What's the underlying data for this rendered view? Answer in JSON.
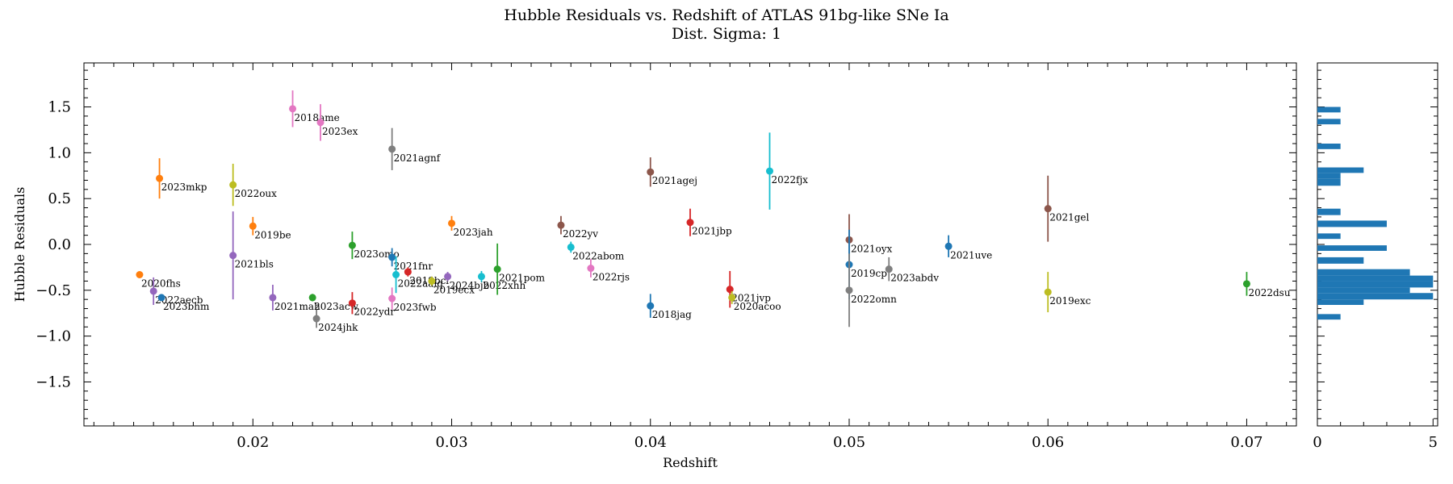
{
  "chart_data": [
    {
      "type": "scatter",
      "title": "Hubble Residuals vs. Redshift of ATLAS 91bg-like SNe Ia",
      "subtitle": "Dist. Sigma: 1",
      "xlabel": "Redshift",
      "ylabel": "Hubble Residuals",
      "xlim": [
        0.0115,
        0.0725
      ],
      "ylim": [
        -1.98,
        1.98
      ],
      "xticks": [
        0.02,
        0.03,
        0.04,
        0.05,
        0.06,
        0.07
      ],
      "xtick_labels": [
        "0.02",
        "0.03",
        "0.04",
        "0.05",
        "0.06",
        "0.07"
      ],
      "yticks": [
        -1.5,
        -1.0,
        -0.5,
        0.0,
        0.5,
        1.0,
        1.5
      ],
      "ytick_labels": [
        "−1.5",
        "−1.0",
        "−0.5",
        "0.0",
        "0.5",
        "1.0",
        "1.5"
      ],
      "grid": false,
      "points": [
        {
          "name": "2018ame",
          "x": 0.022,
          "y": 1.48,
          "err": 0.2,
          "color": "#e377c2"
        },
        {
          "name": "2023ex",
          "x": 0.0234,
          "y": 1.33,
          "err": 0.2,
          "color": "#e377c2"
        },
        {
          "name": "2021agnf",
          "x": 0.027,
          "y": 1.04,
          "err": 0.23,
          "color": "#7f7f7f"
        },
        {
          "name": "2023mkp",
          "x": 0.0153,
          "y": 0.72,
          "err": 0.22,
          "color": "#ff7f0e"
        },
        {
          "name": "2022oux",
          "x": 0.019,
          "y": 0.65,
          "err": 0.23,
          "color": "#bcbd22"
        },
        {
          "name": "2019be",
          "x": 0.02,
          "y": 0.2,
          "err": 0.1,
          "color": "#ff7f0e"
        },
        {
          "name": "2021bls",
          "x": 0.019,
          "y": -0.12,
          "err": 0.48,
          "color": "#9467bd"
        },
        {
          "name": "2020fhs",
          "x": 0.0143,
          "y": -0.33,
          "err": 0.03,
          "color": "#ff7f0e"
        },
        {
          "name": "2022aecb",
          "x": 0.015,
          "y": -0.51,
          "err": 0.15,
          "color": "#9467bd"
        },
        {
          "name": "2023bhm",
          "x": 0.0154,
          "y": -0.58,
          "err": 0.03,
          "color": "#1f77b4"
        },
        {
          "name": "2021mah",
          "x": 0.021,
          "y": -0.58,
          "err": 0.14,
          "color": "#9467bd"
        },
        {
          "name": "2023acw",
          "x": 0.023,
          "y": -0.58,
          "err": 0.04,
          "color": "#2ca02c"
        },
        {
          "name": "2024jhk",
          "x": 0.0232,
          "y": -0.81,
          "err": 0.1,
          "color": "#7f7f7f"
        },
        {
          "name": "2023omo",
          "x": 0.025,
          "y": -0.01,
          "err": 0.15,
          "color": "#2ca02c"
        },
        {
          "name": "2022ydr",
          "x": 0.025,
          "y": -0.64,
          "err": 0.12,
          "color": "#d62728"
        },
        {
          "name": "2021fnr",
          "x": 0.027,
          "y": -0.14,
          "err": 0.1,
          "color": "#1f77b4"
        },
        {
          "name": "2023fwb",
          "x": 0.027,
          "y": -0.59,
          "err": 0.12,
          "color": "#e377c2"
        },
        {
          "name": "2022aaiq",
          "x": 0.0272,
          "y": -0.33,
          "err": 0.2,
          "color": "#17becf"
        },
        {
          "name": "2019bcl",
          "x": 0.0278,
          "y": -0.3,
          "err": 0.05,
          "color": "#d62728"
        },
        {
          "name": "2019ecx",
          "x": 0.029,
          "y": -0.4,
          "err": 0.05,
          "color": "#bcbd22"
        },
        {
          "name": "2024bjb",
          "x": 0.0298,
          "y": -0.35,
          "err": 0.05,
          "color": "#9467bd"
        },
        {
          "name": "2022xhh",
          "x": 0.0315,
          "y": -0.35,
          "err": 0.06,
          "color": "#17becf"
        },
        {
          "name": "2021pom",
          "x": 0.0323,
          "y": -0.27,
          "err": 0.28,
          "color": "#2ca02c"
        },
        {
          "name": "2023jah",
          "x": 0.03,
          "y": 0.23,
          "err": 0.08,
          "color": "#ff7f0e"
        },
        {
          "name": "2022yv",
          "x": 0.0355,
          "y": 0.21,
          "err": 0.1,
          "color": "#8c564b"
        },
        {
          "name": "2022abom",
          "x": 0.036,
          "y": -0.03,
          "err": 0.06,
          "color": "#17becf"
        },
        {
          "name": "2022rjs",
          "x": 0.037,
          "y": -0.26,
          "err": 0.1,
          "color": "#e377c2"
        },
        {
          "name": "2021agej",
          "x": 0.04,
          "y": 0.79,
          "err": 0.16,
          "color": "#8c564b"
        },
        {
          "name": "2018jag",
          "x": 0.04,
          "y": -0.67,
          "err": 0.13,
          "color": "#1f77b4"
        },
        {
          "name": "2021jbp",
          "x": 0.042,
          "y": 0.24,
          "err": 0.15,
          "color": "#d62728"
        },
        {
          "name": "2022fjx",
          "x": 0.046,
          "y": 0.8,
          "err": 0.42,
          "color": "#17becf"
        },
        {
          "name": "2021jvp",
          "x": 0.044,
          "y": -0.49,
          "err": 0.2,
          "color": "#d62728"
        },
        {
          "name": "2020acoo",
          "x": 0.0441,
          "y": -0.58,
          "err": 0.07,
          "color": "#bcbd22"
        },
        {
          "name": "2021oyx",
          "x": 0.05,
          "y": 0.05,
          "err": 0.28,
          "color": "#8c564b"
        },
        {
          "name": "2019cp",
          "x": 0.05,
          "y": -0.22,
          "err": 0.38,
          "color": "#1f77b4"
        },
        {
          "name": "2022omn",
          "x": 0.05,
          "y": -0.5,
          "err": 0.4,
          "color": "#7f7f7f"
        },
        {
          "name": "2023abdv",
          "x": 0.052,
          "y": -0.27,
          "err": 0.13,
          "color": "#7f7f7f"
        },
        {
          "name": "2021uve",
          "x": 0.055,
          "y": -0.02,
          "err": 0.12,
          "color": "#1f77b4"
        },
        {
          "name": "2021gel",
          "x": 0.06,
          "y": 0.39,
          "err": 0.36,
          "color": "#8c564b"
        },
        {
          "name": "2019exc",
          "x": 0.06,
          "y": -0.52,
          "err": 0.22,
          "color": "#bcbd22"
        },
        {
          "name": "2022dsu",
          "x": 0.07,
          "y": -0.43,
          "err": 0.13,
          "color": "#2ca02c"
        }
      ]
    },
    {
      "type": "bar",
      "orientation": "horizontal",
      "xlim": [
        0,
        5.2
      ],
      "xticks": [
        0,
        5
      ],
      "xtick_labels": [
        "0",
        "5"
      ],
      "bar_color": "#1f77b4",
      "bins": [
        {
          "y0": -0.82,
          "y1": -0.76,
          "count": 1
        },
        {
          "y0": -0.66,
          "y1": -0.6,
          "count": 2
        },
        {
          "y0": -0.6,
          "y1": -0.53,
          "count": 5
        },
        {
          "y0": -0.53,
          "y1": -0.47,
          "count": 4
        },
        {
          "y0": -0.47,
          "y1": -0.4,
          "count": 5
        },
        {
          "y0": -0.4,
          "y1": -0.34,
          "count": 5
        },
        {
          "y0": -0.34,
          "y1": -0.27,
          "count": 4
        },
        {
          "y0": -0.21,
          "y1": -0.14,
          "count": 2
        },
        {
          "y0": -0.07,
          "y1": -0.01,
          "count": 3
        },
        {
          "y0": 0.06,
          "y1": 0.12,
          "count": 1
        },
        {
          "y0": 0.19,
          "y1": 0.26,
          "count": 3
        },
        {
          "y0": 0.32,
          "y1": 0.39,
          "count": 1
        },
        {
          "y0": 0.64,
          "y1": 0.72,
          "count": 1
        },
        {
          "y0": 0.72,
          "y1": 0.78,
          "count": 1
        },
        {
          "y0": 0.78,
          "y1": 0.84,
          "count": 2
        },
        {
          "y0": 1.04,
          "y1": 1.1,
          "count": 1
        },
        {
          "y0": 1.31,
          "y1": 1.37,
          "count": 1
        },
        {
          "y0": 1.44,
          "y1": 1.5,
          "count": 1
        }
      ]
    }
  ]
}
